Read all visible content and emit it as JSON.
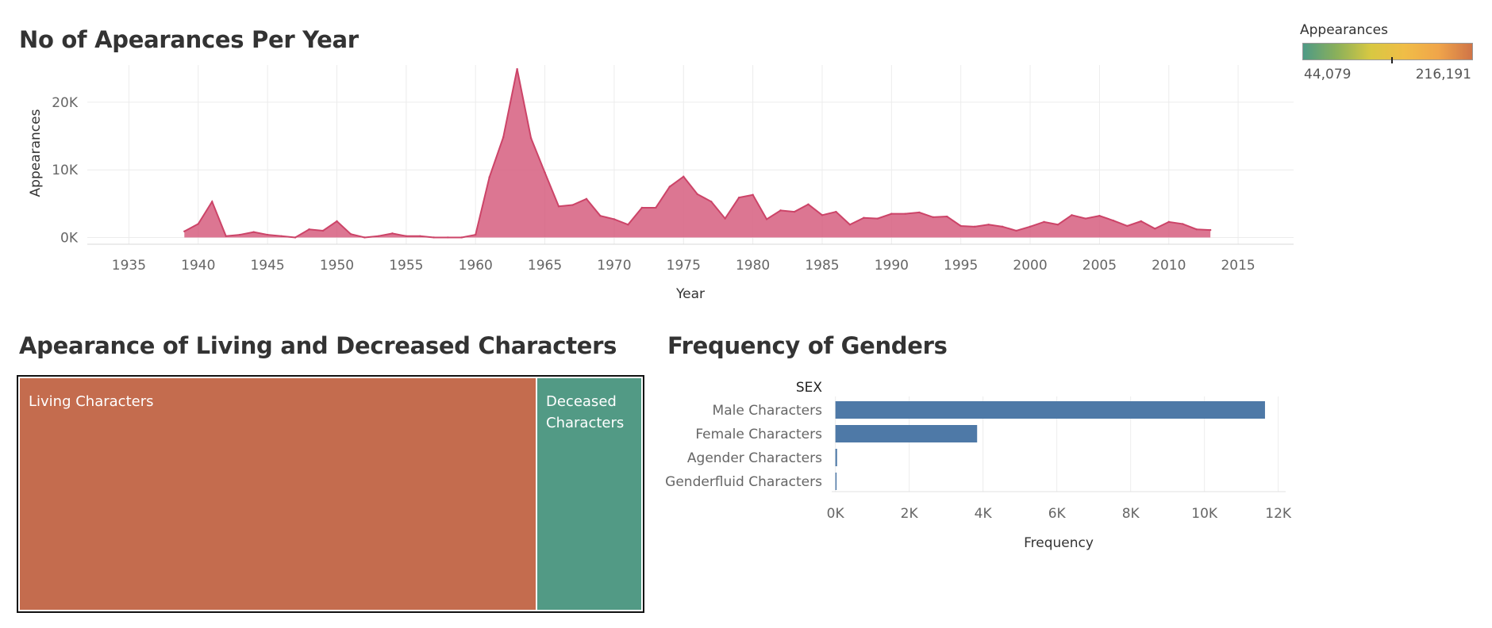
{
  "titles": {
    "area": "No of Apearances Per Year",
    "treemap": "Apearance of Living and Decreased Characters",
    "bar": "Frequency of Genders"
  },
  "legend": {
    "title": "Appearances",
    "min_label": "44,079",
    "max_label": "216,191",
    "colors": [
      "#4e9a86",
      "#8bb05a",
      "#d8c842",
      "#f0bd47",
      "#f0a54a",
      "#cf7448"
    ],
    "marker_fraction": 0.52
  },
  "chart_data": [
    {
      "type": "area",
      "title": "No of Apearances Per Year",
      "xlabel": "Year",
      "ylabel": "Appearances",
      "xlim": [
        1932,
        2019
      ],
      "ylim": [
        -1000,
        25500
      ],
      "xticks": [
        1935,
        1940,
        1945,
        1950,
        1955,
        1960,
        1965,
        1970,
        1975,
        1980,
        1985,
        1990,
        1995,
        2000,
        2005,
        2010,
        2015
      ],
      "xtick_labels": [
        "1935",
        "1940",
        "1945",
        "1950",
        "1955",
        "1960",
        "1965",
        "1970",
        "1975",
        "1980",
        "1985",
        "1990",
        "1995",
        "2000",
        "2005",
        "2010",
        "2015"
      ],
      "yticks": [
        0,
        10000,
        20000
      ],
      "ytick_labels": [
        "0K",
        "10K",
        "20K"
      ],
      "grid": true,
      "color": "#d4587a",
      "x": [
        1939,
        1940,
        1941,
        1942,
        1943,
        1944,
        1945,
        1946,
        1947,
        1948,
        1949,
        1950,
        1951,
        1952,
        1953,
        1954,
        1955,
        1956,
        1957,
        1958,
        1959,
        1960,
        1961,
        1962,
        1963,
        1964,
        1965,
        1966,
        1967,
        1968,
        1969,
        1970,
        1971,
        1972,
        1973,
        1974,
        1975,
        1976,
        1977,
        1978,
        1979,
        1980,
        1981,
        1982,
        1983,
        1984,
        1985,
        1986,
        1987,
        1988,
        1989,
        1990,
        1991,
        1992,
        1993,
        1994,
        1995,
        1996,
        1997,
        1998,
        1999,
        2000,
        2001,
        2002,
        2003,
        2004,
        2005,
        2006,
        2007,
        2008,
        2009,
        2010,
        2011,
        2012,
        2013
      ],
      "y": [
        900,
        2000,
        5300,
        200,
        400,
        800,
        400,
        200,
        0,
        1200,
        1000,
        2400,
        500,
        0,
        200,
        600,
        200,
        200,
        0,
        0,
        0,
        400,
        8900,
        14800,
        24900,
        14700,
        9600,
        4600,
        4800,
        5700,
        3200,
        2700,
        1900,
        4400,
        4400,
        7500,
        9000,
        6400,
        5300,
        2800,
        5900,
        6300,
        2700,
        4000,
        3800,
        4900,
        3300,
        3800,
        1900,
        2900,
        2800,
        3500,
        3500,
        3700,
        3000,
        3100,
        1700,
        1600,
        1900,
        1600,
        1000,
        1600,
        2300,
        1900,
        3300,
        2800,
        3200,
        2500,
        1700,
        2400,
        1300,
        2300,
        2000,
        1200,
        1100
      ]
    },
    {
      "type": "treemap",
      "title": "Apearance of Living and Decreased Characters",
      "items": [
        {
          "label": "Living Characters",
          "value": 216191,
          "color": "#c46c4e"
        },
        {
          "label": "Deceased Characters",
          "value": 44079,
          "color": "#529a85"
        }
      ]
    },
    {
      "type": "bar",
      "orientation": "horizontal",
      "title": "Frequency of Genders",
      "header": "SEX",
      "xlabel": "Frequency",
      "categories": [
        "Male Characters",
        "Female Characters",
        "Agender Characters",
        "Genderfluid Characters"
      ],
      "values": [
        11640,
        3840,
        45,
        2
      ],
      "xlim": [
        -100,
        12200
      ],
      "xticks": [
        0,
        2000,
        4000,
        6000,
        8000,
        10000,
        12000
      ],
      "xtick_labels": [
        "0K",
        "2K",
        "4K",
        "6K",
        "8K",
        "10K",
        "12K"
      ],
      "grid": true,
      "color": "#4e79a7"
    }
  ]
}
